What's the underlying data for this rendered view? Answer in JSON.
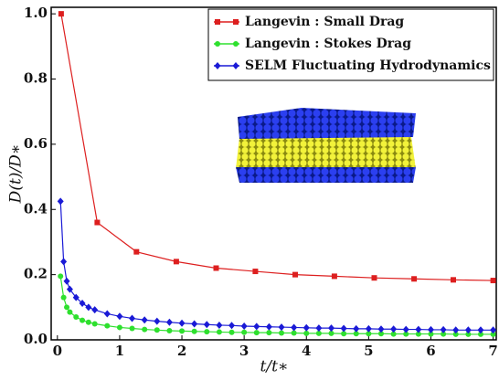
{
  "chart_data": {
    "type": "line",
    "xlabel": "t/t∗",
    "ylabel": "D(t)/D∗",
    "xlim": [
      -0.1,
      7.05
    ],
    "ylim": [
      0,
      1.02
    ],
    "xticks": [
      0,
      1,
      2,
      3,
      4,
      5,
      6,
      7
    ],
    "yticks": [
      {
        "value": 0,
        "label": "0.0"
      },
      0.2,
      0.4,
      0.6,
      0.8,
      {
        "value": 1,
        "label": "1.0"
      }
    ],
    "legend": "upper right",
    "series": [
      {
        "name": "Langevin : Small Drag",
        "color": "#dd1f1f",
        "marker": "square",
        "x": [
          0.06,
          0.64,
          1.27,
          1.91,
          2.55,
          3.18,
          3.82,
          4.45,
          5.09,
          5.73,
          6.36,
          7.0
        ],
        "values": [
          1.0,
          0.36,
          0.27,
          0.24,
          0.22,
          0.21,
          0.2,
          0.195,
          0.19,
          0.187,
          0.184,
          0.182
        ]
      },
      {
        "name": "Langevin : Stokes Drag",
        "color": "#2ee02e",
        "marker": "circle",
        "x": [
          0.05,
          0.1,
          0.15,
          0.2,
          0.3,
          0.4,
          0.5,
          0.6,
          0.8,
          1.0,
          1.2,
          1.4,
          1.6,
          1.8,
          2.0,
          2.2,
          2.4,
          2.6,
          2.8,
          3.0,
          3.2,
          3.4,
          3.6,
          3.8,
          4.0,
          4.2,
          4.4,
          4.6,
          4.8,
          5.0,
          5.2,
          5.4,
          5.6,
          5.8,
          6.0,
          6.2,
          6.4,
          6.6,
          6.8,
          7.0
        ],
        "values": [
          0.195,
          0.13,
          0.1,
          0.085,
          0.07,
          0.06,
          0.054,
          0.049,
          0.043,
          0.038,
          0.035,
          0.032,
          0.03,
          0.028,
          0.027,
          0.026,
          0.025,
          0.024,
          0.023,
          0.023,
          0.022,
          0.022,
          0.021,
          0.021,
          0.02,
          0.02,
          0.02,
          0.019,
          0.019,
          0.019,
          0.019,
          0.018,
          0.018,
          0.018,
          0.018,
          0.018,
          0.017,
          0.017,
          0.017,
          0.017
        ]
      },
      {
        "name": "SELM Fluctuating Hydrodynamics",
        "color": "#1a1ad6",
        "marker": "diamond",
        "x": [
          0.05,
          0.1,
          0.15,
          0.2,
          0.3,
          0.4,
          0.5,
          0.6,
          0.8,
          1.0,
          1.2,
          1.4,
          1.6,
          1.8,
          2.0,
          2.2,
          2.4,
          2.6,
          2.8,
          3.0,
          3.2,
          3.4,
          3.6,
          3.8,
          4.0,
          4.2,
          4.4,
          4.6,
          4.8,
          5.0,
          5.2,
          5.4,
          5.6,
          5.8,
          6.0,
          6.2,
          6.4,
          6.6,
          6.8,
          7.0
        ],
        "values": [
          0.425,
          0.24,
          0.18,
          0.155,
          0.13,
          0.112,
          0.1,
          0.092,
          0.08,
          0.072,
          0.066,
          0.061,
          0.057,
          0.054,
          0.051,
          0.049,
          0.047,
          0.045,
          0.044,
          0.042,
          0.041,
          0.04,
          0.039,
          0.038,
          0.037,
          0.036,
          0.036,
          0.035,
          0.034,
          0.034,
          0.033,
          0.033,
          0.032,
          0.032,
          0.031,
          0.031,
          0.03,
          0.03,
          0.03,
          0.03
        ]
      }
    ]
  }
}
